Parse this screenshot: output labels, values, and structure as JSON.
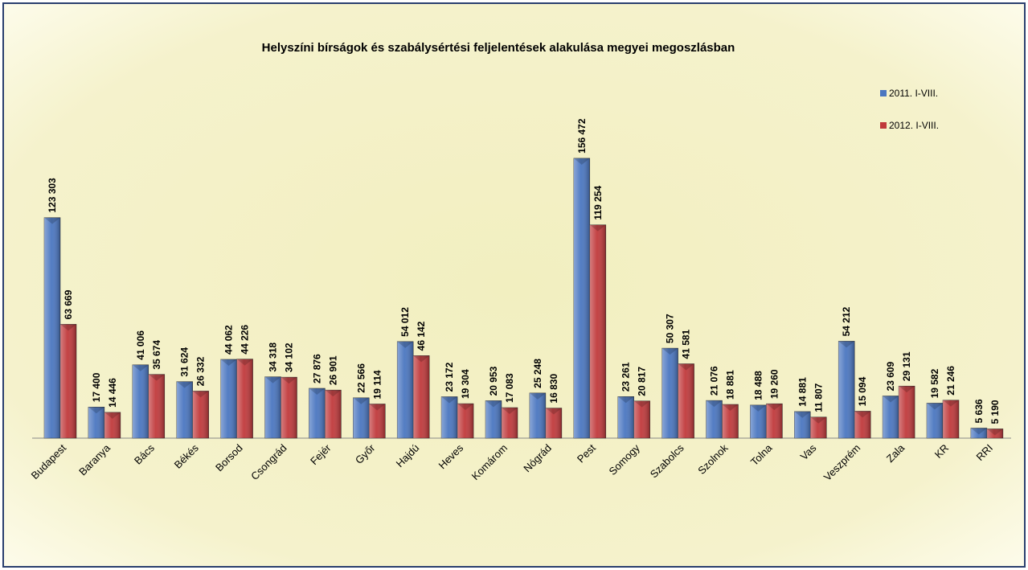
{
  "chart_data": {
    "type": "bar",
    "title": "Helyszíni bírságok és szabálysértési feljelentések alakulása megyei megoszlásban",
    "categories": [
      "Budapest",
      "Baranya",
      "Bács",
      "Békés",
      "Borsod",
      "Csongrád",
      "Fejér",
      "Győr",
      "Hajdú",
      "Heves",
      "Komárom",
      "Nógrád",
      "Pest",
      "Somogy",
      "Szabolcs",
      "Szolnok",
      "Tolna",
      "Vas",
      "Veszprém",
      "Zala",
      "KR",
      "RRI"
    ],
    "series": [
      {
        "name": "2011. I-VIII.",
        "color": "#4a76c0",
        "values": [
          123303,
          17400,
          41006,
          31624,
          44062,
          34318,
          27876,
          22566,
          54012,
          23172,
          20953,
          25248,
          156472,
          23261,
          50307,
          21076,
          18488,
          14881,
          54212,
          23609,
          19582,
          5636
        ],
        "value_labels": [
          "123 303",
          "17 400",
          "41 006",
          "31 624",
          "44 062",
          "34 318",
          "27 876",
          "22 566",
          "54 012",
          "23 172",
          "20 953",
          "25 248",
          "156 472",
          "23 261",
          "50 307",
          "21 076",
          "18 488",
          "14 881",
          "54 212",
          "23 609",
          "19 582",
          "5 636"
        ]
      },
      {
        "name": "2012. I-VIII.",
        "color": "#c0393b",
        "values": [
          63669,
          14446,
          35674,
          26332,
          44226,
          34102,
          26901,
          19114,
          46142,
          19304,
          17083,
          16830,
          119254,
          20817,
          41581,
          18881,
          19260,
          11807,
          15094,
          29131,
          21246,
          5190
        ],
        "value_labels": [
          "63 669",
          "14 446",
          "35 674",
          "26 332",
          "44 226",
          "34 102",
          "26 901",
          "19 114",
          "46 142",
          "19 304",
          "17 083",
          "16 830",
          "119 254",
          "20 817",
          "41 581",
          "18 881",
          "19 260",
          "11 807",
          "15 094",
          "29 131",
          "21 246",
          "5 190"
        ]
      }
    ],
    "ylim": [
      0,
      160000
    ],
    "legend": "right"
  }
}
